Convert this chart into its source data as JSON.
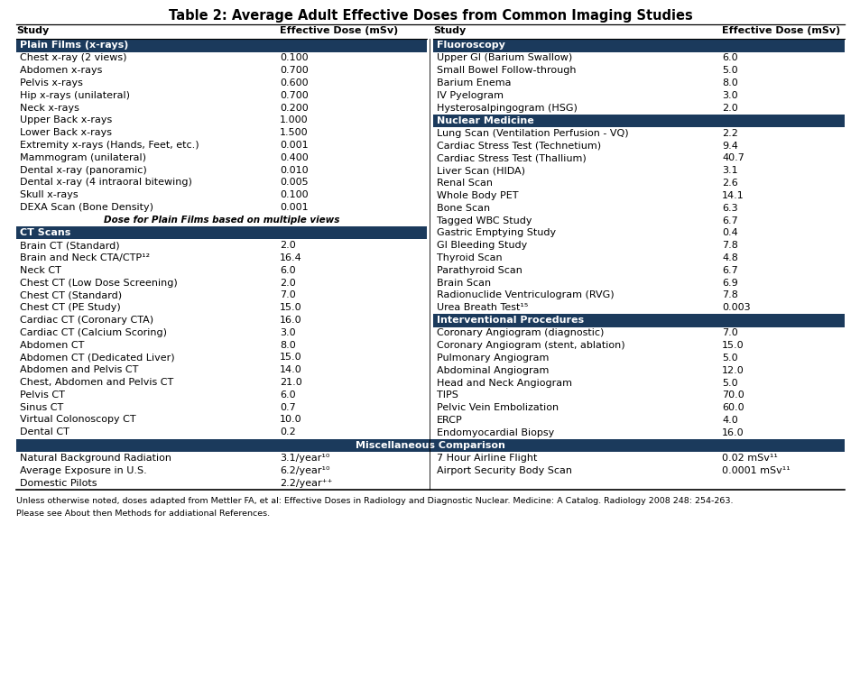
{
  "title": "Table 2: Average Adult Effective Doses from Common Imaging Studies",
  "section_bg": "#1b3a5c",
  "section_fg": "#ffffff",
  "col1_header": [
    "Study",
    "Effective Dose (mSv)"
  ],
  "col2_header": [
    "Study",
    "Effective Dose (mSv)"
  ],
  "left_sections": [
    {
      "name": "Plain Films (x-rays)",
      "rows": [
        [
          "Chest x-ray (2 views)",
          "0.100"
        ],
        [
          "Abdomen x-rays",
          "0.700"
        ],
        [
          "Pelvis x-rays",
          "0.600"
        ],
        [
          "Hip x-rays (unilateral)",
          "0.700"
        ],
        [
          "Neck x-rays",
          "0.200"
        ],
        [
          "Upper Back x-rays",
          "1.000"
        ],
        [
          "Lower Back x-rays",
          "1.500"
        ],
        [
          "Extremity x-rays (Hands, Feet, etc.)",
          "0.001"
        ],
        [
          "Mammogram (unilateral)",
          "0.400"
        ],
        [
          "Dental x-ray (panoramic)",
          "0.010"
        ],
        [
          "Dental x-ray (4 intraoral bitewing)",
          "0.005"
        ],
        [
          "Skull x-rays",
          "0.100"
        ],
        [
          "DEXA Scan (Bone Density)",
          "0.001"
        ]
      ],
      "footnote": "Dose for Plain Films based on multiple views"
    },
    {
      "name": "CT Scans",
      "rows": [
        [
          "Brain CT (Standard)",
          "2.0"
        ],
        [
          "Brain and Neck CTA/CTP¹²",
          "16.4"
        ],
        [
          "Neck CT",
          "6.0"
        ],
        [
          "Chest CT (Low Dose Screening)",
          "2.0"
        ],
        [
          "Chest CT (Standard)",
          "7.0"
        ],
        [
          "Chest CT (PE Study)",
          "15.0"
        ],
        [
          "Cardiac CT (Coronary CTA)",
          "16.0"
        ],
        [
          "Cardiac CT (Calcium Scoring)",
          "3.0"
        ],
        [
          "Abdomen CT",
          "8.0"
        ],
        [
          "Abdomen CT (Dedicated Liver)",
          "15.0"
        ],
        [
          "Abdomen and Pelvis CT",
          "14.0"
        ],
        [
          "Chest, Abdomen and Pelvis CT",
          "21.0"
        ],
        [
          "Pelvis CT",
          "6.0"
        ],
        [
          "Sinus CT",
          "0.7"
        ],
        [
          "Virtual Colonoscopy CT",
          "10.0"
        ],
        [
          "Dental CT",
          "0.2"
        ]
      ]
    }
  ],
  "right_sections": [
    {
      "name": "Fluoroscopy",
      "rows": [
        [
          "Upper GI (Barium Swallow)",
          "6.0"
        ],
        [
          "Small Bowel Follow-through",
          "5.0"
        ],
        [
          "Barium Enema",
          "8.0"
        ],
        [
          "IV Pyelogram",
          "3.0"
        ],
        [
          "Hysterosalpingogram (HSG)",
          "2.0"
        ]
      ]
    },
    {
      "name": "Nuclear Medicine",
      "rows": [
        [
          "Lung Scan (Ventilation Perfusion - VQ)",
          "2.2"
        ],
        [
          "Cardiac Stress Test (Technetium)",
          "9.4"
        ],
        [
          "Cardiac Stress Test (Thallium)",
          "40.7"
        ],
        [
          "Liver Scan (HIDA)",
          "3.1"
        ],
        [
          "Renal Scan",
          "2.6"
        ],
        [
          "Whole Body PET",
          "14.1"
        ],
        [
          "Bone Scan",
          "6.3"
        ],
        [
          "Tagged WBC Study",
          "6.7"
        ],
        [
          "Gastric Emptying Study",
          "0.4"
        ],
        [
          "GI Bleeding Study",
          "7.8"
        ],
        [
          "Thyroid Scan",
          "4.8"
        ],
        [
          "Parathyroid Scan",
          "6.7"
        ],
        [
          "Brain Scan",
          "6.9"
        ],
        [
          "Radionuclide Ventriculogram (RVG)",
          "7.8"
        ],
        [
          "Urea Breath Test¹⁵",
          "0.003"
        ]
      ]
    },
    {
      "name": "Interventional Procedures",
      "rows": [
        [
          "Coronary Angiogram (diagnostic)",
          "7.0"
        ],
        [
          "Coronary Angiogram (stent, ablation)",
          "15.0"
        ],
        [
          "Pulmonary Angiogram",
          "5.0"
        ],
        [
          "Abdominal Angiogram",
          "12.0"
        ],
        [
          "Head and Neck Angiogram",
          "5.0"
        ],
        [
          "TIPS",
          "70.0"
        ],
        [
          "Pelvic Vein Embolization",
          "60.0"
        ],
        [
          "ERCP",
          "4.0"
        ],
        [
          "Endomyocardial Biopsy",
          "16.0"
        ]
      ]
    }
  ],
  "misc_section": {
    "name": "Miscellaneous Comparison",
    "left_rows": [
      [
        "Natural Background Radiation",
        "3.1/year¹⁰"
      ],
      [
        "Average Exposure in U.S.",
        "6.2/year¹⁰"
      ],
      [
        "Domestic Pilots",
        "2.2/year⁺⁺"
      ]
    ],
    "right_rows": [
      [
        "7 Hour Airline Flight",
        "0.02 mSv¹¹"
      ],
      [
        "Airport Security Body Scan",
        "0.0001 mSv¹¹"
      ]
    ]
  },
  "footnote1": "Unless otherwise noted, doses adapted from Mettler FA, et al: Effective Doses in Radiology and Diagnostic Nuclear. Medicine: A Catalog. Radiology 2008 248: 254-263.",
  "footnote2": "Please see About then Methods for addiational References.",
  "bg_color": "#ffffff",
  "text_color": "#000000",
  "font_size": 8.0,
  "title_font_size": 10.5,
  "footnote_font_size": 6.8
}
